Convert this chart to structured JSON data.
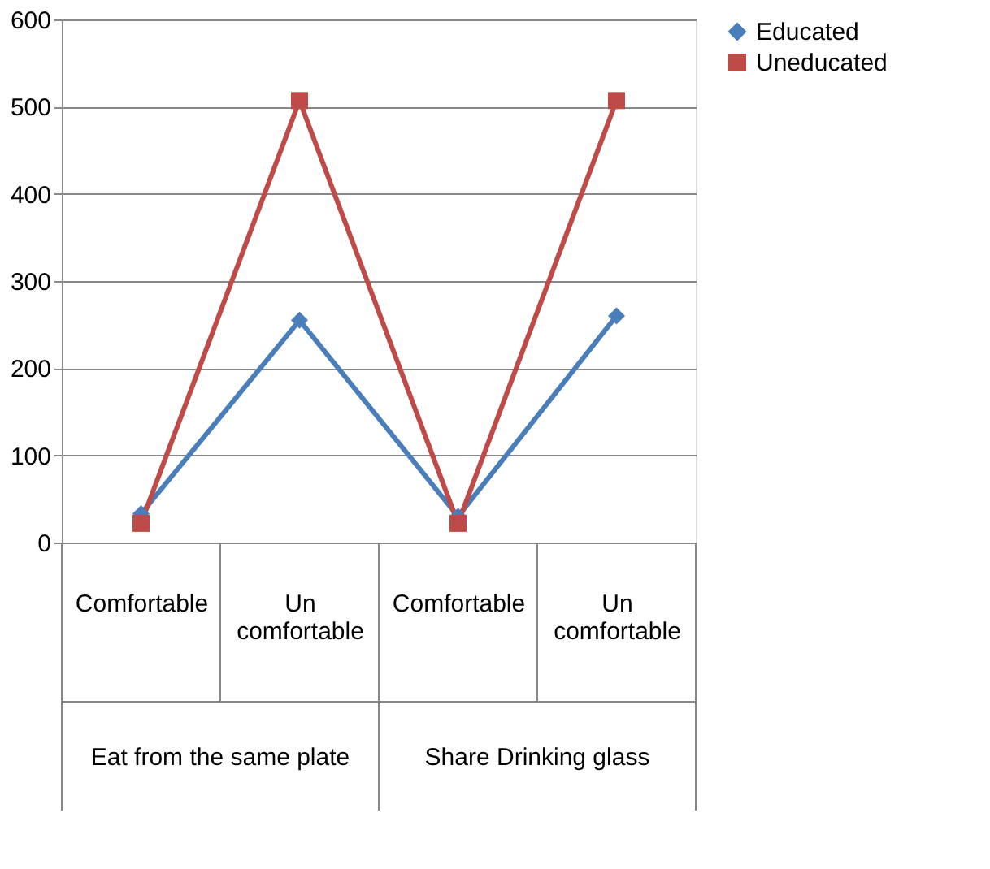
{
  "chart_data": {
    "type": "line",
    "categories": [
      "Comfortable",
      "Un comfortable",
      "Comfortable",
      "Un comfortable"
    ],
    "series": [
      {
        "name": "Educated",
        "color": "#4a7ebb",
        "marker": "diamond",
        "values": [
          33,
          255,
          30,
          260
        ]
      },
      {
        "name": "Uneducated",
        "color": "#be4b48",
        "marker": "square",
        "values": [
          22,
          507,
          22,
          507
        ]
      }
    ],
    "annotations": [
      "Eat from the same plate",
      "Share Drinking glass"
    ],
    "ylim": [
      0,
      600
    ],
    "yticks": [
      0,
      100,
      200,
      300,
      400,
      500,
      600
    ],
    "grid": "y",
    "legend": "right",
    "line_style": "solid"
  }
}
